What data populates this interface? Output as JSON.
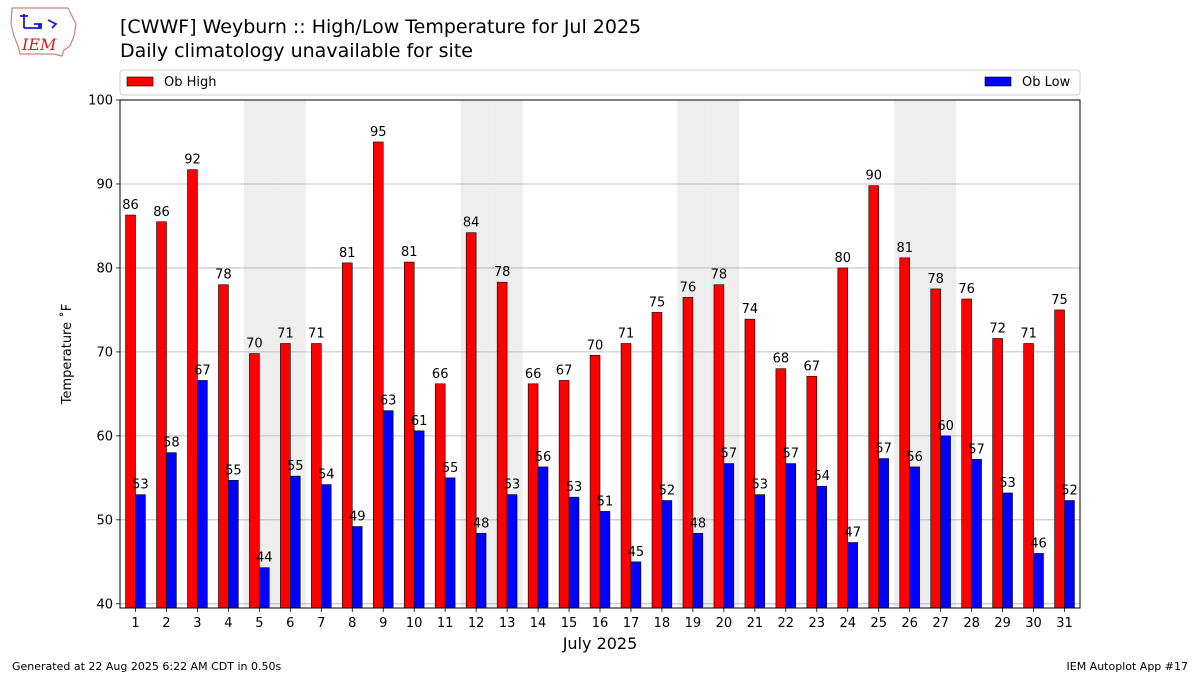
{
  "header": {
    "title_line1": "[CWWF] Weyburn :: High/Low Temperature for Jul 2025",
    "title_line2": "Daily climatology unavailable for site",
    "logo_text": "IEM"
  },
  "footer": {
    "left": "Generated at 22 Aug 2025 6:22 AM CDT in 0.50s",
    "right": "IEM Autoplot App #17"
  },
  "colors": {
    "high": "#ff0000",
    "low": "#0000ff",
    "weekend_shade": "#eeeeee",
    "grid": "#b0b0b0"
  },
  "chart_data": {
    "type": "bar",
    "title": "[CWWF] Weyburn :: High/Low Temperature for Jul 2025",
    "subtitle": "Daily climatology unavailable for site",
    "xlabel": "July 2025",
    "ylabel": "Temperature ˚F",
    "ylim": [
      39.5,
      100
    ],
    "yticks": [
      40,
      50,
      60,
      70,
      80,
      90,
      100
    ],
    "grid": true,
    "legend_placement": "top",
    "categories": [
      "1",
      "2",
      "3",
      "4",
      "5",
      "6",
      "7",
      "8",
      "9",
      "10",
      "11",
      "12",
      "13",
      "14",
      "15",
      "16",
      "17",
      "18",
      "19",
      "20",
      "21",
      "22",
      "23",
      "24",
      "25",
      "26",
      "27",
      "28",
      "29",
      "30",
      "31"
    ],
    "shaded_days": [
      5,
      6,
      12,
      13,
      19,
      20,
      26,
      27
    ],
    "series": [
      {
        "name": "Ob High",
        "values": [
          86.3,
          85.5,
          91.7,
          78,
          69.8,
          71,
          71,
          80.6,
          95,
          80.7,
          66.2,
          84.2,
          78.3,
          66.2,
          66.6,
          69.6,
          71,
          74.7,
          76.5,
          78,
          73.9,
          68,
          67.1,
          80,
          89.8,
          81.2,
          77.5,
          76.3,
          71.6,
          71,
          75
        ],
        "labels": [
          "86",
          "86",
          "92",
          "78",
          "70",
          "71",
          "71",
          "81",
          "95",
          "81",
          "66",
          "84",
          "78",
          "66",
          "67",
          "70",
          "71",
          "75",
          "76",
          "78",
          "74",
          "68",
          "67",
          "80",
          "90",
          "81",
          "78",
          "76",
          "72",
          "71",
          "75"
        ]
      },
      {
        "name": "Ob Low",
        "values": [
          53,
          58,
          66.6,
          54.7,
          44.3,
          55.2,
          54.2,
          49.2,
          63,
          60.6,
          55,
          48.4,
          53,
          56.3,
          52.7,
          51,
          45,
          52.3,
          48.4,
          56.7,
          53,
          56.7,
          54,
          47.3,
          57.3,
          56.3,
          60,
          57.2,
          53.2,
          46,
          52.3
        ],
        "labels": [
          "53",
          "58",
          "67",
          "55",
          "44",
          "55",
          "54",
          "49",
          "63",
          "61",
          "55",
          "48",
          "53",
          "56",
          "53",
          "51",
          "45",
          "52",
          "48",
          "57",
          "53",
          "57",
          "54",
          "47",
          "57",
          "56",
          "60",
          "57",
          "53",
          "46",
          "52"
        ]
      }
    ]
  }
}
